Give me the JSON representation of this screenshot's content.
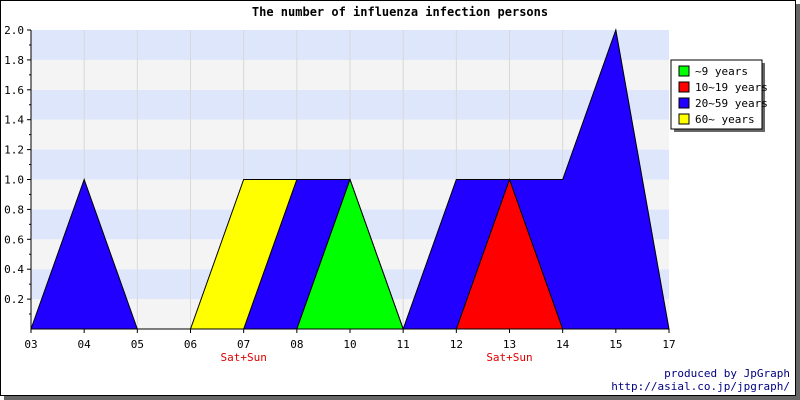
{
  "chart_data": {
    "type": "area",
    "title": "The number of influenza infection persons",
    "categories": [
      "03",
      "04",
      "05",
      "06",
      "07",
      "08",
      "10",
      "11",
      "12",
      "13",
      "14",
      "15",
      "17"
    ],
    "category_notes": {
      "07": "Sat+Sun",
      "13": "Sat+Sun"
    },
    "ylim": [
      0,
      2.0
    ],
    "yticks": [
      "0.2",
      "0.4",
      "0.6",
      "0.8",
      "1.0",
      "1.2",
      "1.4",
      "1.6",
      "1.8",
      "2.0"
    ],
    "grid": "horizontal bands",
    "legend_position": "top-right",
    "series": [
      {
        "name": "~9 years",
        "color": "#00ff00",
        "values": [
          0,
          0,
          0,
          0,
          0,
          0,
          1,
          0,
          0,
          0,
          0,
          0,
          0
        ]
      },
      {
        "name": "10~19 years",
        "color": "#ff0000",
        "values": [
          0,
          0,
          0,
          0,
          0,
          0,
          0,
          0,
          0,
          1,
          0,
          0,
          0
        ]
      },
      {
        "name": "20~59 years",
        "color": "#2200ff",
        "values": [
          0,
          1,
          0,
          0,
          0,
          1,
          1,
          0,
          1,
          1,
          1,
          2,
          0
        ]
      },
      {
        "name": "60~ years",
        "color": "#ffff00",
        "values": [
          0,
          0,
          0,
          0,
          1,
          1,
          0,
          0,
          0,
          0,
          0,
          0,
          0
        ]
      }
    ]
  },
  "credit": {
    "line1": "produced by JpGraph",
    "line2": "http://asial.co.jp/jpgraph/"
  }
}
